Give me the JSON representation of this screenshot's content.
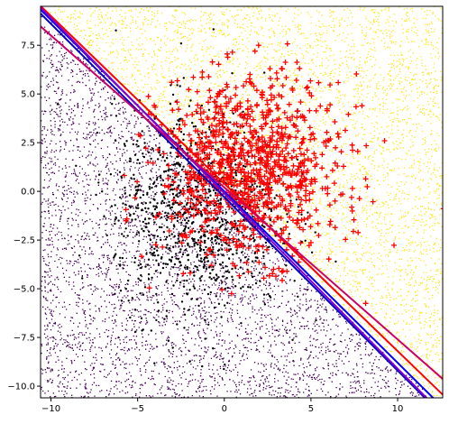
{
  "chart_data": {
    "type": "scatter",
    "xlim": [
      -10.6,
      12.6
    ],
    "ylim": [
      -10.6,
      9.5
    ],
    "x_ticks": [
      -10,
      -5,
      0,
      5,
      10
    ],
    "x_tick_labels": [
      "−10",
      "−5",
      "0",
      "5",
      "10"
    ],
    "y_ticks": [
      7.5,
      5.0,
      2.5,
      0.0,
      -2.5,
      -5.0,
      -7.5,
      -10.0
    ],
    "y_tick_labels": [
      "7.5",
      "5.0",
      "2.5",
      "0.0",
      "−2.5",
      "−5.0",
      "−7.5",
      "−10.0"
    ],
    "grid": false,
    "background_regions": [
      {
        "name": "",
        "side": "upper-right",
        "color": "#fde725"
      },
      {
        "name": "",
        "side": "lower-left",
        "color": "#440154"
      }
    ],
    "classes": [
      {
        "name": "",
        "marker": "dot",
        "color": "#000000",
        "center": [
          -1.5,
          -1.0
        ],
        "spread": [
          2.4,
          2.6
        ],
        "n_points": 1100
      },
      {
        "name": "",
        "marker": "plus",
        "color": "#ff0000",
        "center": [
          1.5,
          1.2
        ],
        "spread": [
          2.6,
          2.3
        ],
        "n_points": 1000
      }
    ],
    "boundary_lines": [
      {
        "color": "#0000ff",
        "slope": -0.88,
        "intercept": 0.0
      },
      {
        "color": "#ff0000",
        "slope": -0.86,
        "intercept": 0.4
      },
      {
        "color": "#0000cc",
        "slope": -0.89,
        "intercept": -0.3
      },
      {
        "color": "#8800cc",
        "slope": -0.9,
        "intercept": -0.1
      },
      {
        "color": "#cc0066",
        "slope": -0.78,
        "intercept": 0.2
      }
    ]
  }
}
